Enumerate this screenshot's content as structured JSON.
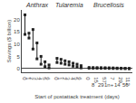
{
  "chart_data": {
    "type": "range",
    "xlabel": "Start of postattack treatment (days)",
    "ylabel": "Savings ($ billion)",
    "ylim": [
      -1.5,
      24
    ],
    "yticks": [
      0,
      5,
      10,
      15,
      20
    ],
    "grid": false,
    "color": "#222222",
    "marker": "square",
    "series": [
      {
        "name": "Anthrax",
        "categories": [
          "0",
          "1",
          "2",
          "3",
          "4",
          "5",
          "6"
        ],
        "max": [
          22.0,
          14.5,
          16.0,
          10.5,
          5.0,
          2.8,
          1.5
        ],
        "min": [
          14.0,
          12.5,
          8.0,
          4.0,
          1.8,
          0.8,
          0.3
        ]
      },
      {
        "name": "Tularemia",
        "categories": [
          "0",
          "1",
          "2",
          "3",
          "4",
          "5",
          "6"
        ],
        "max": [
          4.2,
          3.8,
          3.2,
          2.8,
          2.2,
          1.8,
          1.2
        ],
        "min": [
          2.5,
          2.2,
          1.8,
          1.5,
          1.0,
          0.7,
          0.3
        ]
      },
      {
        "name": "Brucellosis",
        "categories": [
          "0",
          "8",
          "15",
          "29",
          "57",
          "1n+",
          "7",
          "14",
          "29",
          "56",
          "112"
        ],
        "max": [
          0.45,
          0.42,
          0.4,
          0.38,
          0.35,
          0.32,
          0.28,
          0.22,
          0.18,
          0.12,
          0.05
        ],
        "min": [
          0.2,
          0.18,
          0.17,
          0.15,
          0.13,
          0.1,
          0.08,
          0.05,
          0.03,
          0.01,
          0.0
        ]
      }
    ]
  }
}
